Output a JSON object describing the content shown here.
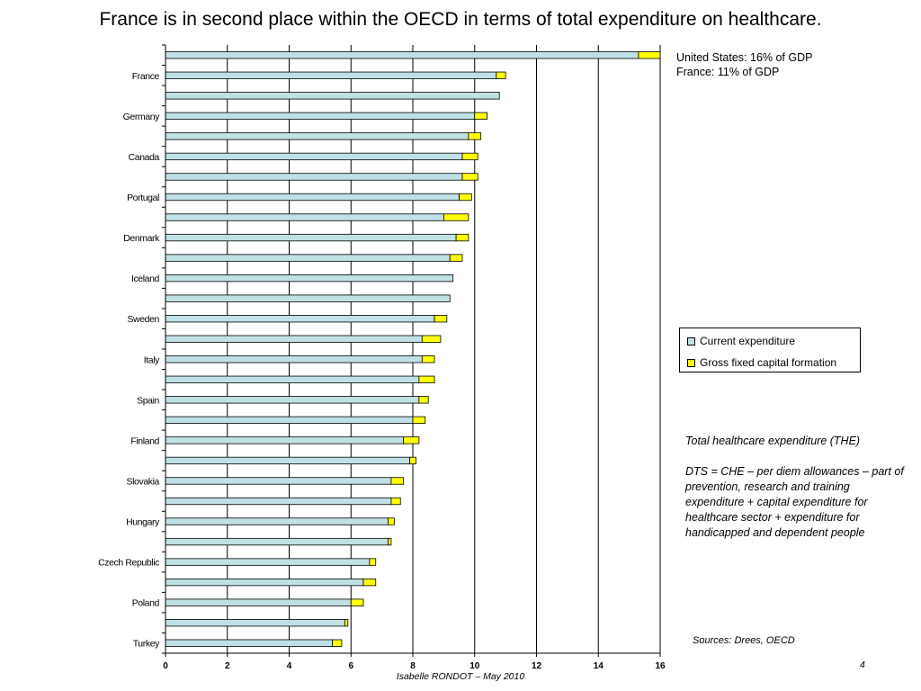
{
  "title": "France is in second place within the OECD in terms of total expenditure on healthcare.",
  "annotation": {
    "line1": "United States: 16% of GDP",
    "line2": "France: 11% of GDP"
  },
  "legend": {
    "current": "Current expenditure",
    "capital": "Gross fixed capital formation"
  },
  "note": {
    "line1": "Total healthcare expenditure (THE)",
    "line2": "DTS =  CHE – per diem allowances – part of prevention, research and training expenditure +  capital expenditure for healthcare sector + expenditure for handicapped and dependent people"
  },
  "sources": "Sources: Drees, OECD",
  "page_number": "4",
  "footer": "Isabelle RONDOT – May 2010",
  "colors": {
    "current": "#bfe0e4",
    "capital": "#ffff00",
    "outline": "#000000",
    "gridline": "#000000"
  },
  "chart_data": {
    "type": "bar",
    "orientation": "horizontal",
    "stacked": true,
    "categories": [
      "",
      "France",
      "",
      "Germany",
      "",
      "Canada",
      "",
      "Portugal",
      "",
      "Denmark",
      "",
      "Iceland",
      "",
      "Sweden",
      "",
      "Italy",
      "",
      "Spain",
      "",
      "Finland",
      "",
      "Slovakia",
      "",
      "Hungary",
      "",
      "Czech Republic",
      "",
      "Poland",
      "",
      "Turkey"
    ],
    "series": [
      {
        "name": "Current expenditure",
        "color": "#bfe0e4",
        "values": [
          15.3,
          10.7,
          10.8,
          10.0,
          9.8,
          9.6,
          9.6,
          9.5,
          9.0,
          9.4,
          9.2,
          9.3,
          9.2,
          8.7,
          8.3,
          8.3,
          8.2,
          8.2,
          8.0,
          7.7,
          7.9,
          7.3,
          7.3,
          7.2,
          7.2,
          6.6,
          6.4,
          6.0,
          5.8,
          5.4
        ]
      },
      {
        "name": "Gross fixed capital formation",
        "color": "#ffff00",
        "values": [
          0.7,
          0.3,
          0.0,
          0.4,
          0.4,
          0.5,
          0.5,
          0.4,
          0.8,
          0.4,
          0.4,
          0.0,
          0.0,
          0.4,
          0.6,
          0.4,
          0.5,
          0.3,
          0.4,
          0.5,
          0.2,
          0.4,
          0.3,
          0.2,
          0.1,
          0.2,
          0.4,
          0.4,
          0.1,
          0.3
        ]
      }
    ],
    "xlim": [
      0,
      16
    ],
    "xticks": [
      0,
      2,
      4,
      6,
      8,
      10,
      12,
      14,
      16
    ],
    "vertical_grid": true,
    "legend_position": "right"
  }
}
